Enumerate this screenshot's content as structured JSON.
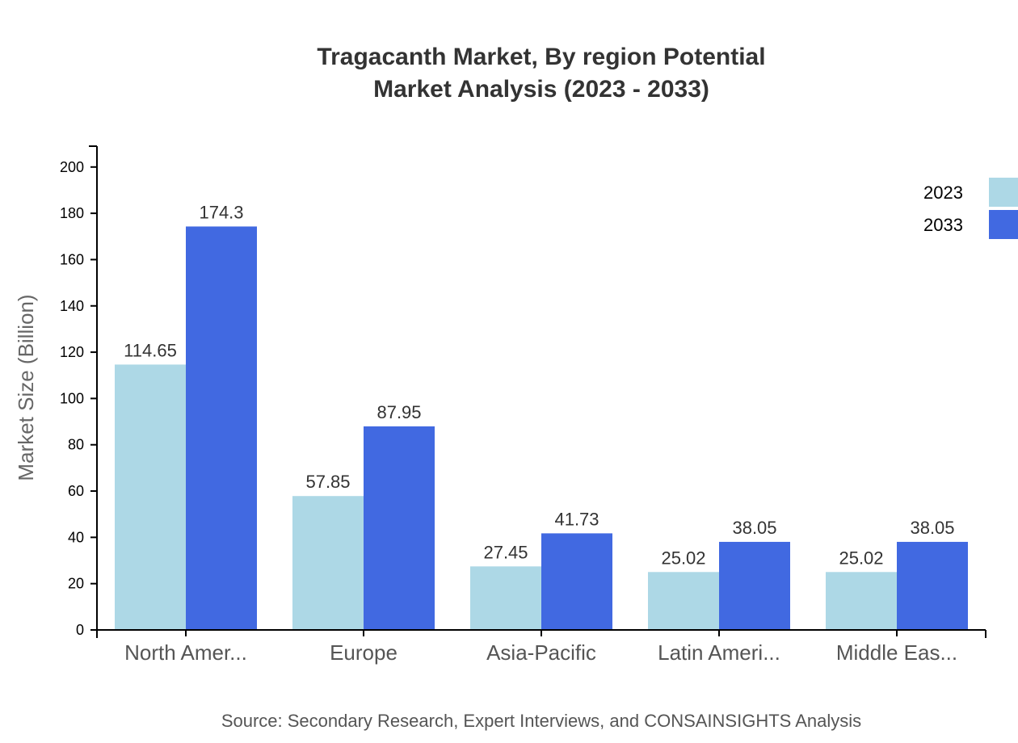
{
  "chart_data": {
    "type": "bar",
    "title_lines": [
      "Tragacanth Market, By region Potential",
      "Market Analysis (2023 - 2033)"
    ],
    "ylabel": "Market Size (Billion)",
    "xlabel": "",
    "categories": [
      "North Amer...",
      "Europe",
      "Asia-Pacific",
      "Latin Ameri...",
      "Middle Eas..."
    ],
    "series": [
      {
        "name": "2023",
        "color": "#add8e6",
        "values": [
          114.65,
          57.85,
          27.45,
          25.02,
          25.02
        ],
        "labels": [
          "114.65",
          "57.85",
          "27.45",
          "25.02",
          "25.02"
        ]
      },
      {
        "name": "2033",
        "color": "#4169e1",
        "values": [
          174.3,
          87.95,
          41.73,
          38.05,
          38.05
        ],
        "labels": [
          "174.3",
          "87.95",
          "41.73",
          "38.05",
          "38.05"
        ]
      }
    ],
    "ylim": [
      0,
      209
    ],
    "yticks": [
      0,
      20,
      40,
      60,
      80,
      100,
      120,
      140,
      160,
      180,
      200
    ],
    "ytick_labels": [
      "0",
      "20",
      "40",
      "60",
      "80",
      "100",
      "120",
      "140",
      "160",
      "180",
      "200"
    ],
    "legend_position": "top-right",
    "grid": false,
    "source": "Source: Secondary Research, Expert Interviews, and CONSAINSIGHTS Analysis"
  }
}
